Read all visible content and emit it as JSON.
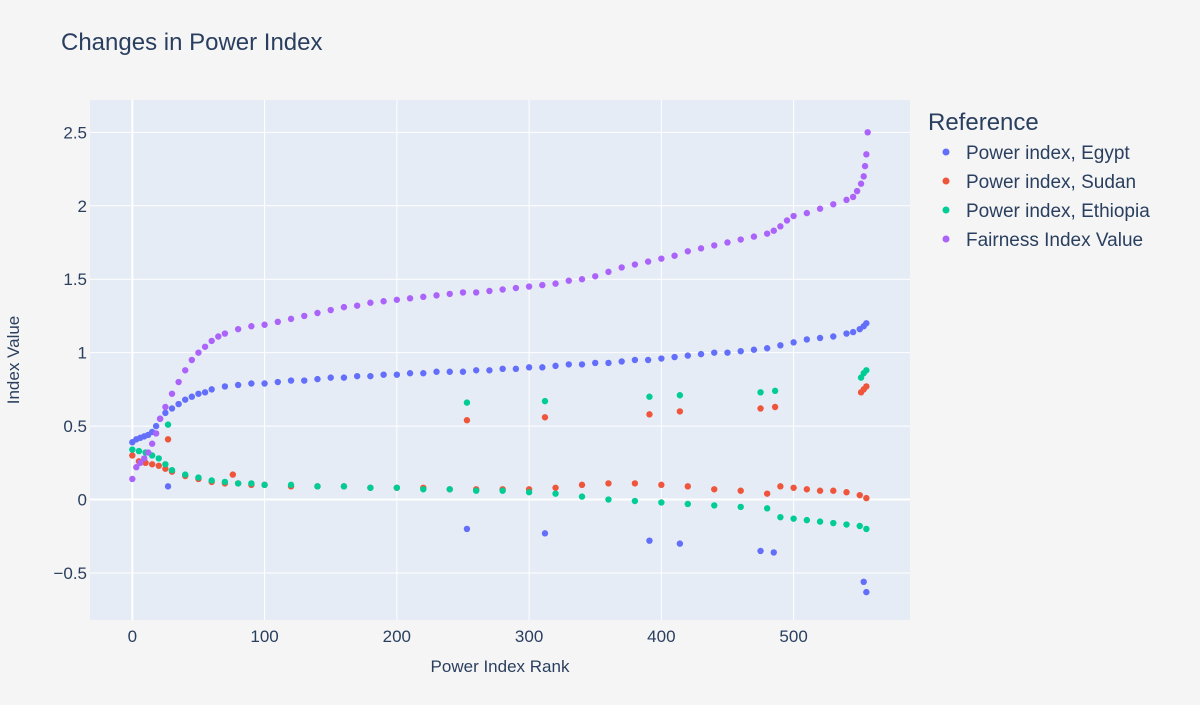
{
  "chart_data": {
    "type": "scatter",
    "title": "Changes in Power Index",
    "xlabel": "Power Index Rank",
    "ylabel": "Index Value",
    "xlim": [
      -32,
      588
    ],
    "ylim": [
      -0.82,
      2.72
    ],
    "xticks": [
      0,
      100,
      200,
      300,
      400,
      500
    ],
    "xtick_labels": [
      "0",
      "100",
      "200",
      "300",
      "400",
      "500"
    ],
    "yticks": [
      -0.5,
      0,
      0.5,
      1,
      1.5,
      2,
      2.5
    ],
    "ytick_labels": [
      "−0.5",
      "0",
      "0.5",
      "1",
      "1.5",
      "2",
      "2.5"
    ],
    "grid": true,
    "legend": {
      "title": "Reference",
      "placement": "right"
    },
    "series": [
      {
        "name": "Power index, Egypt",
        "color": "#636efa",
        "x": [
          0,
          3,
          6,
          9,
          12,
          15,
          18,
          21,
          25,
          30,
          35,
          40,
          45,
          50,
          55,
          60,
          70,
          80,
          90,
          100,
          110,
          120,
          130,
          140,
          150,
          160,
          170,
          180,
          190,
          200,
          210,
          220,
          230,
          240,
          250,
          260,
          270,
          280,
          290,
          300,
          310,
          320,
          330,
          340,
          350,
          360,
          370,
          380,
          390,
          400,
          410,
          420,
          430,
          440,
          450,
          460,
          470,
          480,
          490,
          500,
          510,
          520,
          530,
          540,
          545,
          550,
          553,
          555,
          27,
          253,
          312,
          391,
          414,
          475,
          485,
          553,
          555
        ],
        "y": [
          0.39,
          0.41,
          0.42,
          0.43,
          0.44,
          0.46,
          0.5,
          0.55,
          0.59,
          0.62,
          0.65,
          0.68,
          0.7,
          0.72,
          0.73,
          0.75,
          0.77,
          0.78,
          0.79,
          0.79,
          0.8,
          0.81,
          0.81,
          0.82,
          0.83,
          0.83,
          0.84,
          0.84,
          0.85,
          0.85,
          0.86,
          0.86,
          0.87,
          0.87,
          0.87,
          0.88,
          0.88,
          0.89,
          0.89,
          0.9,
          0.9,
          0.91,
          0.92,
          0.92,
          0.93,
          0.93,
          0.94,
          0.95,
          0.95,
          0.96,
          0.97,
          0.98,
          0.99,
          1.0,
          1.0,
          1.01,
          1.02,
          1.03,
          1.05,
          1.07,
          1.09,
          1.1,
          1.11,
          1.13,
          1.14,
          1.16,
          1.18,
          1.2,
          0.09,
          -0.2,
          -0.23,
          -0.28,
          -0.3,
          -0.35,
          -0.36,
          -0.56,
          -0.63
        ]
      },
      {
        "name": "Power index, Sudan",
        "color": "#ef553b",
        "x": [
          0,
          5,
          10,
          15,
          20,
          25,
          30,
          40,
          50,
          60,
          70,
          80,
          90,
          100,
          120,
          140,
          160,
          180,
          200,
          220,
          240,
          260,
          280,
          300,
          320,
          340,
          360,
          380,
          400,
          420,
          440,
          460,
          480,
          490,
          500,
          510,
          520,
          530,
          540,
          550,
          555,
          27,
          76,
          253,
          312,
          391,
          414,
          475,
          486,
          551,
          553,
          555
        ],
        "y": [
          0.3,
          0.26,
          0.25,
          0.24,
          0.23,
          0.21,
          0.19,
          0.16,
          0.14,
          0.12,
          0.11,
          0.11,
          0.1,
          0.1,
          0.09,
          0.09,
          0.09,
          0.08,
          0.08,
          0.08,
          0.07,
          0.07,
          0.07,
          0.07,
          0.08,
          0.1,
          0.11,
          0.11,
          0.1,
          0.09,
          0.07,
          0.06,
          0.04,
          0.09,
          0.08,
          0.07,
          0.06,
          0.06,
          0.05,
          0.03,
          0.01,
          0.41,
          0.17,
          0.54,
          0.56,
          0.58,
          0.6,
          0.62,
          0.63,
          0.73,
          0.75,
          0.77
        ]
      },
      {
        "name": "Power index, Ethiopia",
        "color": "#00cc96",
        "x": [
          0,
          5,
          10,
          15,
          20,
          25,
          30,
          40,
          50,
          60,
          70,
          80,
          90,
          100,
          120,
          140,
          160,
          180,
          200,
          220,
          240,
          260,
          280,
          300,
          320,
          340,
          360,
          380,
          400,
          420,
          440,
          460,
          480,
          490,
          500,
          510,
          520,
          530,
          540,
          550,
          555,
          27,
          253,
          312,
          391,
          414,
          475,
          486,
          551,
          553,
          555
        ],
        "y": [
          0.34,
          0.33,
          0.32,
          0.3,
          0.28,
          0.24,
          0.2,
          0.17,
          0.15,
          0.13,
          0.12,
          0.11,
          0.11,
          0.1,
          0.1,
          0.09,
          0.09,
          0.08,
          0.08,
          0.07,
          0.07,
          0.06,
          0.06,
          0.05,
          0.04,
          0.02,
          0.0,
          -0.01,
          -0.02,
          -0.03,
          -0.04,
          -0.05,
          -0.06,
          -0.12,
          -0.13,
          -0.14,
          -0.15,
          -0.16,
          -0.17,
          -0.18,
          -0.2,
          0.51,
          0.66,
          0.67,
          0.7,
          0.71,
          0.73,
          0.74,
          0.83,
          0.86,
          0.88
        ]
      },
      {
        "name": "Fairness Index Value",
        "color": "#ab63fa",
        "x": [
          0,
          3,
          6,
          9,
          12,
          15,
          18,
          21,
          25,
          30,
          35,
          40,
          45,
          50,
          55,
          60,
          65,
          70,
          80,
          90,
          100,
          110,
          120,
          130,
          140,
          150,
          160,
          170,
          180,
          190,
          200,
          210,
          220,
          230,
          240,
          250,
          260,
          270,
          280,
          290,
          300,
          310,
          320,
          330,
          340,
          350,
          360,
          370,
          380,
          390,
          400,
          410,
          420,
          430,
          440,
          450,
          460,
          470,
          480,
          485,
          490,
          495,
          500,
          510,
          520,
          530,
          540,
          545,
          548,
          551,
          553,
          554,
          555,
          556
        ],
        "y": [
          0.14,
          0.22,
          0.25,
          0.28,
          0.32,
          0.38,
          0.45,
          0.55,
          0.63,
          0.72,
          0.8,
          0.88,
          0.95,
          1.0,
          1.04,
          1.08,
          1.11,
          1.13,
          1.16,
          1.18,
          1.19,
          1.21,
          1.23,
          1.25,
          1.27,
          1.29,
          1.31,
          1.32,
          1.34,
          1.35,
          1.36,
          1.37,
          1.38,
          1.39,
          1.4,
          1.41,
          1.41,
          1.42,
          1.43,
          1.44,
          1.45,
          1.46,
          1.47,
          1.49,
          1.5,
          1.52,
          1.55,
          1.58,
          1.6,
          1.62,
          1.64,
          1.66,
          1.69,
          1.71,
          1.73,
          1.75,
          1.77,
          1.79,
          1.81,
          1.83,
          1.86,
          1.9,
          1.93,
          1.95,
          1.98,
          2.01,
          2.04,
          2.06,
          2.1,
          2.15,
          2.2,
          2.27,
          2.35,
          2.5
        ]
      }
    ]
  }
}
